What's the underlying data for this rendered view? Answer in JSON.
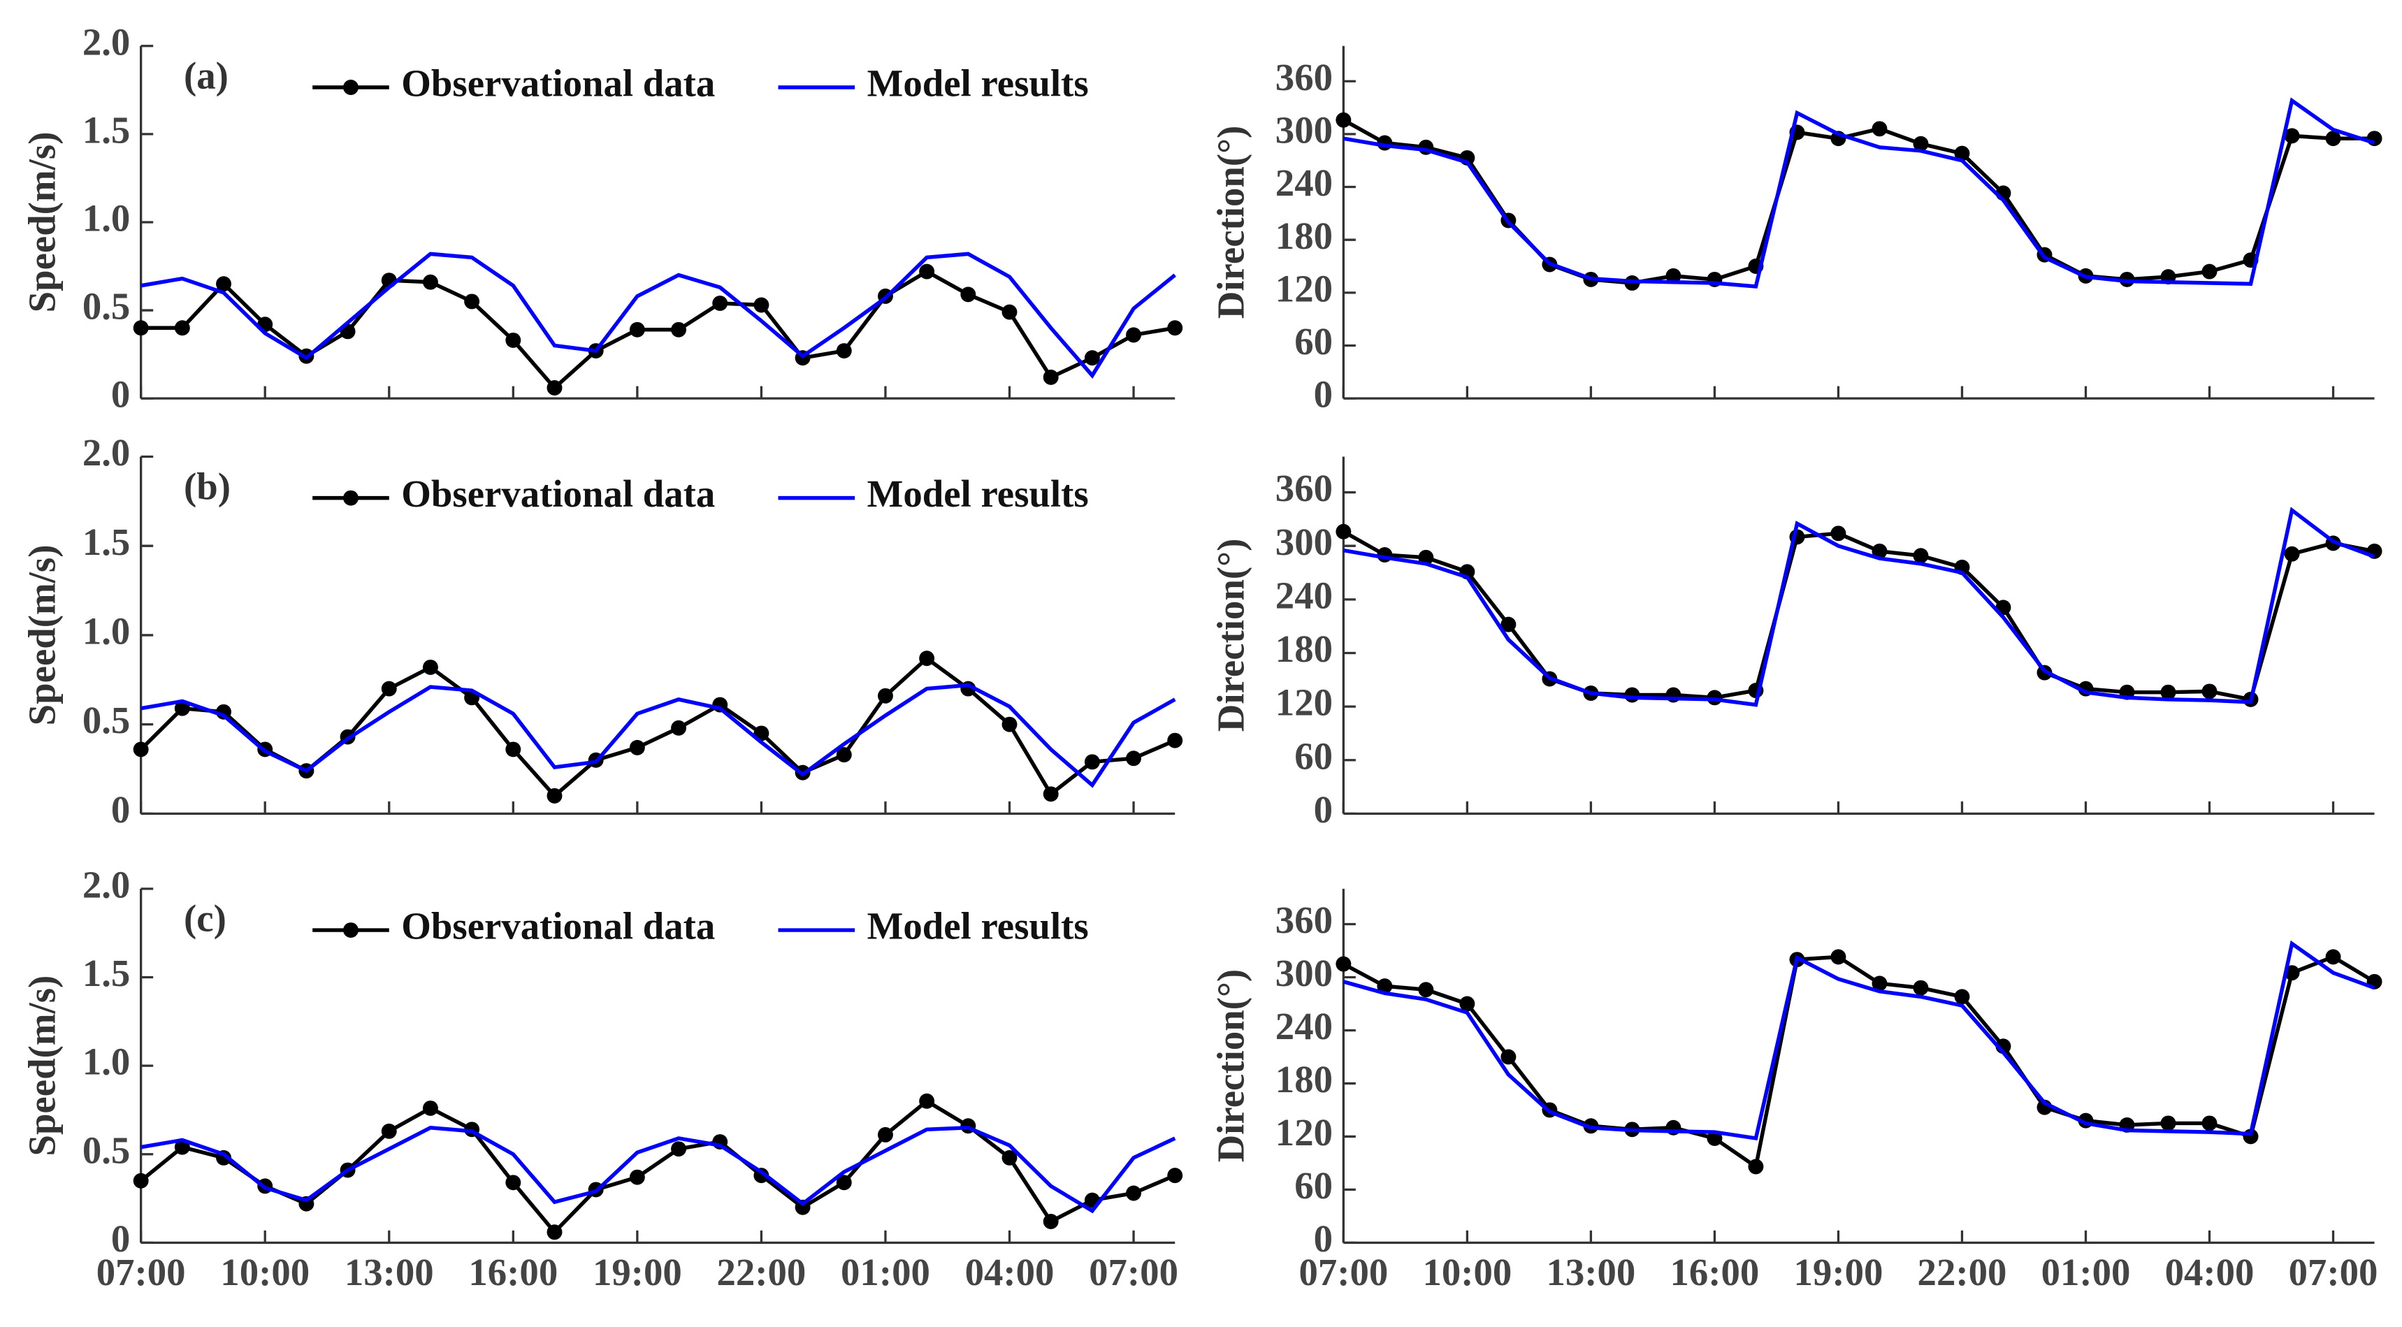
{
  "chart_data": [
    {
      "type": "line",
      "annotation": "(a)",
      "ylabel": "Speed(m/s)",
      "ylim": [
        0,
        2
      ],
      "yticks": [
        0,
        0.5,
        {
          "value": 1,
          "label": "1.0"
        },
        1.5,
        {
          "value": 2,
          "label": "2.0"
        }
      ],
      "legend": "upper right",
      "series": [
        {
          "name": "Observational data",
          "color": "#000000",
          "marker": "o",
          "values": [
            0.4,
            0.4,
            0.65,
            0.42,
            0.24,
            0.38,
            0.67,
            0.66,
            0.55,
            0.33,
            0.06,
            0.27,
            0.39,
            0.39,
            0.54,
            0.53,
            0.23,
            0.27,
            0.58,
            0.72,
            0.59,
            0.49,
            0.12,
            0.23,
            0.36,
            0.4
          ]
        },
        {
          "name": "Model results",
          "color": "#0000ff",
          "values": [
            0.64,
            0.68,
            0.6,
            0.37,
            0.23,
            0.43,
            0.63,
            0.82,
            0.8,
            0.64,
            0.3,
            0.27,
            0.58,
            0.7,
            0.63,
            0.44,
            0.24,
            0.4,
            0.57,
            0.8,
            0.82,
            0.69,
            0.4,
            0.13,
            0.51,
            0.7
          ]
        }
      ]
    },
    {
      "type": "line",
      "ylabel": "Direction(°)",
      "ylim": [
        0,
        400
      ],
      "yticks": [
        0,
        60,
        120,
        180,
        240,
        300,
        360
      ],
      "series": [
        {
          "color": "#000000",
          "marker": "o",
          "values": [
            316,
            290,
            285,
            273,
            202,
            152,
            135,
            131,
            139,
            135,
            150,
            302,
            295,
            306,
            289,
            278,
            233,
            163,
            139,
            135,
            138,
            144,
            157,
            298,
            295,
            295
          ]
        },
        {
          "color": "#0000ff",
          "values": [
            295,
            287,
            282,
            268,
            200,
            153,
            136,
            133,
            132,
            131,
            127,
            324,
            300,
            285,
            281,
            270,
            225,
            160,
            138,
            133,
            132,
            131,
            130,
            338,
            305,
            290
          ]
        }
      ]
    },
    {
      "type": "line",
      "annotation": "(b)",
      "ylabel": "Speed(m/s)",
      "ylim": [
        0,
        2
      ],
      "yticks": [
        0,
        0.5,
        {
          "value": 1,
          "label": "1.0"
        },
        1.5,
        {
          "value": 2,
          "label": "2.0"
        }
      ],
      "legend": "upper right",
      "series": [
        {
          "name": "Observational data",
          "color": "#000000",
          "marker": "o",
          "values": [
            0.36,
            0.59,
            0.57,
            0.36,
            0.24,
            0.43,
            0.7,
            0.82,
            0.65,
            0.36,
            0.1,
            0.3,
            0.37,
            0.48,
            0.61,
            0.45,
            0.23,
            0.33,
            0.66,
            0.87,
            0.7,
            0.5,
            0.11,
            0.29,
            0.31,
            0.41
          ]
        },
        {
          "name": "Model results",
          "color": "#0000ff",
          "values": [
            0.59,
            0.63,
            0.55,
            0.35,
            0.24,
            0.42,
            0.57,
            0.71,
            0.69,
            0.56,
            0.26,
            0.29,
            0.56,
            0.64,
            0.59,
            0.4,
            0.22,
            0.39,
            0.55,
            0.7,
            0.72,
            0.6,
            0.36,
            0.16,
            0.51,
            0.64
          ]
        }
      ]
    },
    {
      "type": "line",
      "ylabel": "Direction(°)",
      "ylim": [
        0,
        400
      ],
      "yticks": [
        0,
        60,
        120,
        180,
        240,
        300,
        360
      ],
      "series": [
        {
          "color": "#000000",
          "marker": "o",
          "values": [
            316,
            290,
            287,
            271,
            212,
            151,
            135,
            133,
            133,
            130,
            138,
            310,
            314,
            294,
            289,
            276,
            231,
            158,
            140,
            136,
            136,
            137,
            128,
            291,
            303,
            294
          ]
        },
        {
          "color": "#0000ff",
          "values": [
            295,
            287,
            280,
            265,
            195,
            152,
            135,
            130,
            129,
            128,
            122,
            325,
            300,
            286,
            280,
            270,
            220,
            160,
            136,
            130,
            128,
            127,
            125,
            340,
            305,
            288
          ]
        }
      ]
    },
    {
      "type": "line",
      "annotation": "(c)",
      "ylabel": "Speed(m/s)",
      "ylim": [
        0,
        2
      ],
      "yticks": [
        0,
        0.5,
        {
          "value": 1,
          "label": "1.0"
        },
        1.5,
        {
          "value": 2,
          "label": "2.0"
        }
      ],
      "legend": "upper right",
      "categories": [
        "07:00",
        null,
        null,
        "10:00",
        null,
        null,
        "13:00",
        null,
        null,
        "16:00",
        null,
        null,
        "19:00",
        null,
        null,
        "22:00",
        null,
        null,
        "01:00",
        null,
        null,
        "04:00",
        null,
        null,
        "07:00",
        null
      ],
      "series": [
        {
          "name": "Observational data",
          "color": "#000000",
          "marker": "o",
          "values": [
            0.35,
            0.54,
            0.48,
            0.32,
            0.22,
            0.41,
            0.63,
            0.76,
            0.64,
            0.34,
            0.06,
            0.3,
            0.37,
            0.53,
            0.57,
            0.38,
            0.2,
            0.34,
            0.61,
            0.8,
            0.66,
            0.48,
            0.12,
            0.24,
            0.28,
            0.38
          ]
        },
        {
          "name": "Model results",
          "color": "#0000ff",
          "values": [
            0.54,
            0.58,
            0.5,
            0.31,
            0.24,
            0.41,
            0.53,
            0.65,
            0.63,
            0.5,
            0.23,
            0.29,
            0.51,
            0.59,
            0.55,
            0.4,
            0.22,
            0.4,
            0.52,
            0.64,
            0.65,
            0.55,
            0.32,
            0.18,
            0.48,
            0.59
          ]
        }
      ]
    },
    {
      "type": "line",
      "ylabel": "Direction(°)",
      "ylim": [
        0,
        400
      ],
      "yticks": [
        0,
        60,
        120,
        180,
        240,
        300,
        360
      ],
      "categories": [
        "07:00",
        null,
        null,
        "10:00",
        null,
        null,
        "13:00",
        null,
        null,
        "16:00",
        null,
        null,
        "19:00",
        null,
        null,
        "22:00",
        null,
        null,
        "01:00",
        null,
        null,
        "04:00",
        null,
        null,
        "07:00",
        null
      ],
      "series": [
        {
          "color": "#000000",
          "marker": "o",
          "values": [
            315,
            290,
            286,
            270,
            210,
            150,
            132,
            128,
            130,
            118,
            86,
            320,
            323,
            293,
            288,
            278,
            222,
            153,
            138,
            133,
            135,
            135,
            120,
            305,
            323,
            295
          ]
        },
        {
          "color": "#0000ff",
          "values": [
            295,
            282,
            275,
            260,
            190,
            148,
            130,
            127,
            126,
            125,
            118,
            322,
            298,
            284,
            278,
            268,
            215,
            158,
            135,
            127,
            126,
            125,
            123,
            338,
            305,
            288
          ]
        }
      ]
    }
  ]
}
